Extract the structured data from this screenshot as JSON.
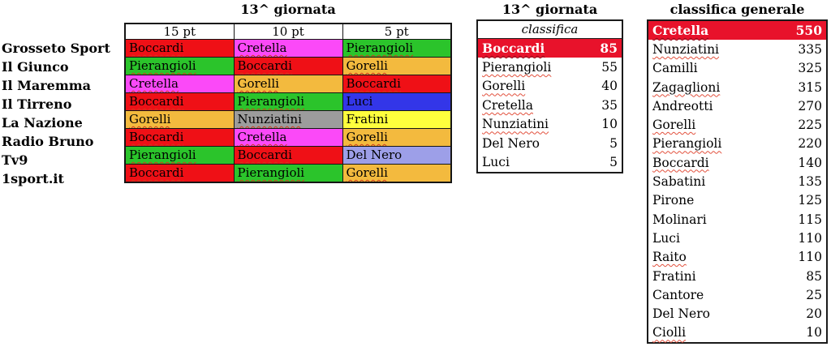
{
  "palette": {
    "cell_red": "#EF1016",
    "cell_green": "#2BC42B",
    "cell_magenta": "#FB49F8",
    "cell_orange": "#F3BA3E",
    "cell_blue": "#3336E8",
    "cell_gray": "#9C9C9C",
    "cell_yellow": "#FFFF3D",
    "cell_periwinkle": "#9D9FE8",
    "highlight_red": "#E8122B",
    "border_dark": "#151515",
    "squiggle_red": "#E2503C"
  },
  "matchday_grid": {
    "title": "13^ giornata",
    "col_headers": [
      "15 pt",
      "10 pt",
      "5 pt"
    ],
    "rows": [
      {
        "outlet": "Grosseto Sport",
        "picks": [
          {
            "name": "Boccardi",
            "color": "cell_red",
            "misspelled": true
          },
          {
            "name": "Cretella",
            "color": "cell_magenta",
            "misspelled": true
          },
          {
            "name": "Pierangioli",
            "color": "cell_green",
            "misspelled": true
          }
        ]
      },
      {
        "outlet": "Il Giunco",
        "picks": [
          {
            "name": "Pierangioli",
            "color": "cell_green",
            "misspelled": true
          },
          {
            "name": "Boccardi",
            "color": "cell_red",
            "misspelled": true
          },
          {
            "name": "Gorelli",
            "color": "cell_orange",
            "misspelled": true
          }
        ]
      },
      {
        "outlet": "Il Maremma",
        "picks": [
          {
            "name": "Cretella",
            "color": "cell_magenta",
            "misspelled": true
          },
          {
            "name": "Gorelli",
            "color": "cell_orange",
            "misspelled": true
          },
          {
            "name": "Boccardi",
            "color": "cell_red",
            "misspelled": true
          }
        ]
      },
      {
        "outlet": "Il Tirreno",
        "picks": [
          {
            "name": "Boccardi",
            "color": "cell_red",
            "misspelled": true
          },
          {
            "name": "Pierangioli",
            "color": "cell_green",
            "misspelled": true
          },
          {
            "name": "Luci",
            "color": "cell_blue",
            "misspelled": false
          }
        ]
      },
      {
        "outlet": "La Nazione",
        "picks": [
          {
            "name": "Gorelli",
            "color": "cell_orange",
            "misspelled": true
          },
          {
            "name": "Nunziatini",
            "color": "cell_gray",
            "misspelled": true
          },
          {
            "name": "Fratini",
            "color": "cell_yellow",
            "misspelled": false
          }
        ]
      },
      {
        "outlet": "Radio Bruno",
        "picks": [
          {
            "name": "Boccardi",
            "color": "cell_red",
            "misspelled": true
          },
          {
            "name": "Cretella",
            "color": "cell_magenta",
            "misspelled": true
          },
          {
            "name": "Gorelli",
            "color": "cell_orange",
            "misspelled": true
          }
        ]
      },
      {
        "outlet": "Tv9",
        "picks": [
          {
            "name": "Pierangioli",
            "color": "cell_green",
            "misspelled": true
          },
          {
            "name": "Boccardi",
            "color": "cell_red",
            "misspelled": true
          },
          {
            "name": "Del Nero",
            "color": "cell_periwinkle",
            "misspelled": false
          }
        ]
      },
      {
        "outlet": "1sport.it",
        "picks": [
          {
            "name": "Boccardi",
            "color": "cell_red",
            "misspelled": true
          },
          {
            "name": "Pierangioli",
            "color": "cell_green",
            "misspelled": true
          },
          {
            "name": "Gorelli",
            "color": "cell_orange",
            "misspelled": true
          }
        ]
      }
    ]
  },
  "matchday_ranking": {
    "title": "13^ giornata",
    "header": "classifica",
    "rows": [
      {
        "name": "Boccardi",
        "points": 85,
        "highlight": true,
        "misspelled": true
      },
      {
        "name": "Pierangioli",
        "points": 55,
        "highlight": false,
        "misspelled": true
      },
      {
        "name": "Gorelli",
        "points": 40,
        "highlight": false,
        "misspelled": true
      },
      {
        "name": "Cretella",
        "points": 35,
        "highlight": false,
        "misspelled": true
      },
      {
        "name": "Nunziatini",
        "points": 10,
        "highlight": false,
        "misspelled": true
      },
      {
        "name": "Del Nero",
        "points": 5,
        "highlight": false,
        "misspelled": false
      },
      {
        "name": "Luci",
        "points": 5,
        "highlight": false,
        "misspelled": false
      }
    ]
  },
  "general_ranking": {
    "title": "classifica generale",
    "rows": [
      {
        "name": "Cretella",
        "points": 550,
        "highlight": true,
        "misspelled": true
      },
      {
        "name": "Nunziatini",
        "points": 335,
        "highlight": false,
        "misspelled": true
      },
      {
        "name": "Camilli",
        "points": 325,
        "highlight": false,
        "misspelled": false
      },
      {
        "name": "Zagaglioni",
        "points": 315,
        "highlight": false,
        "misspelled": true
      },
      {
        "name": "Andreotti",
        "points": 270,
        "highlight": false,
        "misspelled": false
      },
      {
        "name": "Gorelli",
        "points": 225,
        "highlight": false,
        "misspelled": true
      },
      {
        "name": "Pierangioli",
        "points": 220,
        "highlight": false,
        "misspelled": true
      },
      {
        "name": "Boccardi",
        "points": 140,
        "highlight": false,
        "misspelled": true
      },
      {
        "name": "Sabatini",
        "points": 135,
        "highlight": false,
        "misspelled": false
      },
      {
        "name": "Pirone",
        "points": 125,
        "highlight": false,
        "misspelled": false
      },
      {
        "name": "Molinari",
        "points": 115,
        "highlight": false,
        "misspelled": false
      },
      {
        "name": "Luci",
        "points": 110,
        "highlight": false,
        "misspelled": false
      },
      {
        "name": "Raito",
        "points": 110,
        "highlight": false,
        "misspelled": true
      },
      {
        "name": "Fratini",
        "points": 85,
        "highlight": false,
        "misspelled": false
      },
      {
        "name": "Cantore",
        "points": 25,
        "highlight": false,
        "misspelled": false
      },
      {
        "name": "Del Nero",
        "points": 20,
        "highlight": false,
        "misspelled": false
      },
      {
        "name": "Ciolli",
        "points": 10,
        "highlight": false,
        "misspelled": true
      }
    ]
  }
}
